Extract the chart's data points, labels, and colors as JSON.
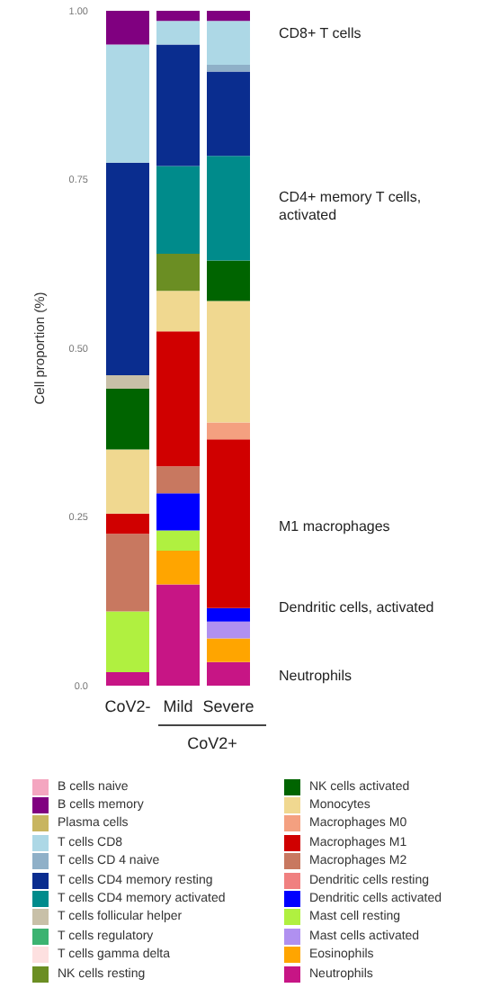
{
  "chart_data": {
    "type": "bar",
    "stacked": true,
    "categories": [
      "CoV2-",
      "Mild",
      "Severe"
    ],
    "ylabel": "Cell proportion (%)",
    "ylim": [
      0,
      1
    ],
    "yticks": [
      {
        "value": 0,
        "label": "0.0"
      },
      0.25,
      {
        "value": 0.5,
        "label": "0.50"
      },
      0.75,
      {
        "value": 1,
        "label": "1.00"
      }
    ],
    "legend": "bottom",
    "annotations": [
      "CD8+ T cells",
      "CD4+ memory T cells, activated",
      "M1 macrophages",
      "Dendritic cells, activated",
      "Neutrophils",
      "CoV2+"
    ],
    "series": [
      {
        "name": "Neutrophils",
        "color": "#c71585",
        "values": [
          0.02,
          0.15,
          0.035
        ]
      },
      {
        "name": "Eosinophils",
        "color": "#ffa500",
        "values": [
          0,
          0.05,
          0.035
        ]
      },
      {
        "name": "Mast cells activated",
        "color": "#b090f0",
        "values": [
          0,
          0,
          0.025
        ]
      },
      {
        "name": "Mast cell resting",
        "color": "#b0f040",
        "values": [
          0.09,
          0.03,
          0
        ]
      },
      {
        "name": "Dendritic cells activated",
        "color": "#0000ff",
        "values": [
          0,
          0.055,
          0.02
        ]
      },
      {
        "name": "Dendritic cells resting",
        "color": "#f08080",
        "values": [
          0,
          0,
          0
        ]
      },
      {
        "name": "Macrophages M2",
        "color": "#c87860",
        "values": [
          0.115,
          0.04,
          0
        ]
      },
      {
        "name": "Macrophages M1",
        "color": "#d00000",
        "values": [
          0.03,
          0.2,
          0.25
        ]
      },
      {
        "name": "Macrophages M0",
        "color": "#f4a080",
        "values": [
          0,
          0,
          0.025
        ]
      },
      {
        "name": "Monocytes",
        "color": "#f0d890",
        "values": [
          0.095,
          0.06,
          0.18
        ]
      },
      {
        "name": "NK cells activated",
        "color": "#006400",
        "values": [
          0.09,
          0,
          0.06
        ]
      },
      {
        "name": "NK cells resting",
        "color": "#6b8e23",
        "values": [
          0,
          0.055,
          0
        ]
      },
      {
        "name": "T cells gamma delta",
        "color": "#fde0e0",
        "values": [
          0,
          0,
          0
        ]
      },
      {
        "name": "T cells regulatory",
        "color": "#3cb371",
        "values": [
          0,
          0,
          0
        ]
      },
      {
        "name": "T cells follicular helper",
        "color": "#c8c0a8",
        "values": [
          0.02,
          0,
          0
        ]
      },
      {
        "name": "T cells CD4 memory activated",
        "color": "#008b8b",
        "values": [
          0,
          0.13,
          0.155
        ]
      },
      {
        "name": "T cells CD4 memory resting",
        "color": "#0a2d8f",
        "values": [
          0.315,
          0.18,
          0.125
        ]
      },
      {
        "name": "T cells CD 4 naive",
        "color": "#8fb0c8",
        "values": [
          0,
          0,
          0.01
        ]
      },
      {
        "name": "T cells CD8",
        "color": "#add8e6",
        "values": [
          0.175,
          0.035,
          0.065
        ]
      },
      {
        "name": "Plasma cells",
        "color": "#c8b560",
        "values": [
          0,
          0,
          0
        ]
      },
      {
        "name": "B cells memory",
        "color": "#800080",
        "values": [
          0.05,
          0.015,
          0.015
        ]
      },
      {
        "name": "B cells naive",
        "color": "#f4a6c0",
        "values": [
          0,
          0,
          0
        ]
      }
    ]
  }
}
